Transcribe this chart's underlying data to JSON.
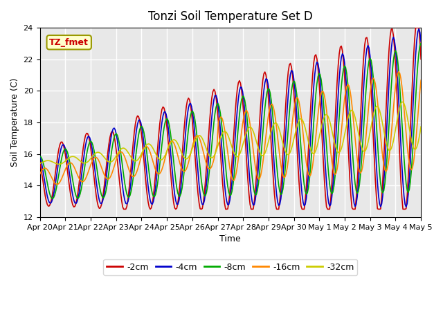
{
  "title": "Tonzi Soil Temperature Set D",
  "xlabel": "Time",
  "ylabel": "Soil Temperature (C)",
  "ylim": [
    12,
    24
  ],
  "yticks": [
    12,
    14,
    16,
    18,
    20,
    22,
    24
  ],
  "annotation_text": "TZ_fmet",
  "legend_labels": [
    "-2cm",
    "-4cm",
    "-8cm",
    "-16cm",
    "-32cm"
  ],
  "legend_colors": [
    "#cc0000",
    "#0000cc",
    "#00aa00",
    "#ff8800",
    "#cccc00"
  ],
  "background_color": "#e8e8e8",
  "grid_color": "#ffffff",
  "xtick_labels": [
    "Apr 20",
    "Apr 21",
    "Apr 22",
    "Apr 23",
    "Apr 24",
    "Apr 25",
    "Apr 26",
    "Apr 27",
    "Apr 28",
    "Apr 29",
    "Apr 30",
    "May 1",
    "May 2",
    "May 3",
    "May 4",
    "May 5"
  ],
  "num_days": 15,
  "points_per_day": 24
}
